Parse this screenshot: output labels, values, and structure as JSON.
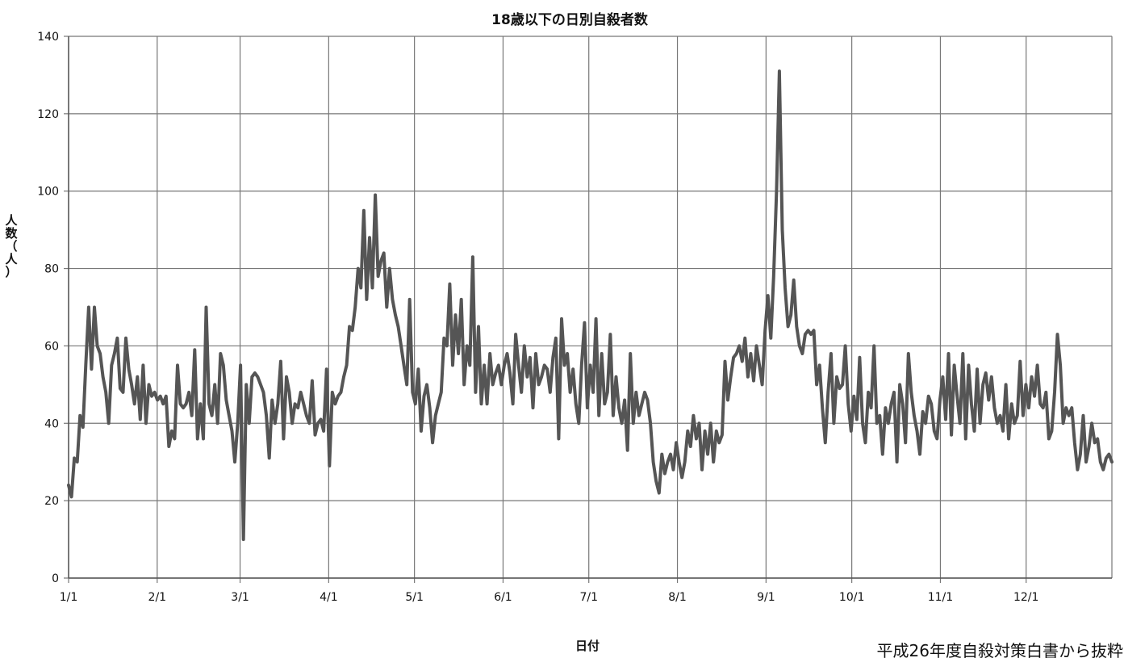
{
  "chart_data": {
    "type": "line",
    "title": "18歳以下の日別自殺者数",
    "xlabel": "日付",
    "ylabel": "人数（人）",
    "ylim": [
      0,
      140
    ],
    "yticks": [
      0,
      20,
      40,
      60,
      80,
      100,
      120,
      140
    ],
    "x_tick_labels": [
      "1/1",
      "2/1",
      "3/1",
      "4/1",
      "5/1",
      "6/1",
      "7/1",
      "8/1",
      "9/1",
      "10/1",
      "11/1",
      "12/1"
    ],
    "x_tick_days": [
      1,
      32,
      61,
      92,
      122,
      153,
      183,
      214,
      245,
      275,
      306,
      336
    ],
    "days_in_year": 366,
    "grid": true,
    "legend": "none",
    "line_color": "#555555",
    "series": [
      {
        "values": [
          24,
          21,
          31,
          30,
          42,
          39,
          55,
          70,
          54,
          70,
          60,
          58,
          52,
          48,
          40,
          55,
          58,
          62,
          49,
          48,
          62,
          54,
          50,
          45,
          52,
          41,
          55,
          40,
          50,
          47,
          48,
          46,
          47,
          45,
          47,
          34,
          38,
          36,
          55,
          45,
          44,
          45,
          48,
          42,
          59,
          36,
          45,
          36,
          70,
          45,
          42,
          50,
          40,
          58,
          55,
          46,
          42,
          38,
          30,
          40,
          55,
          10,
          50,
          40,
          52,
          53,
          52,
          50,
          48,
          42,
          31,
          46,
          40,
          45,
          56,
          36,
          52,
          48,
          40,
          45,
          44,
          48,
          45,
          42,
          40,
          51,
          37,
          40,
          41,
          38,
          54,
          29,
          48,
          45,
          47,
          48,
          52,
          55,
          65,
          64,
          70,
          80,
          75,
          95,
          72,
          88,
          75,
          99,
          78,
          82,
          84,
          70,
          80,
          72,
          68,
          65,
          60,
          55,
          50,
          72,
          48,
          45,
          54,
          38,
          47,
          50,
          44,
          35,
          42,
          45,
          48,
          62,
          60,
          76,
          55,
          68,
          58,
          72,
          50,
          60,
          55,
          83,
          48,
          65,
          45,
          55,
          45,
          58,
          50,
          53,
          55,
          50,
          55,
          58,
          53,
          45,
          63,
          55,
          48,
          60,
          52,
          57,
          44,
          58,
          50,
          52,
          55,
          54,
          48,
          57,
          62,
          36,
          67,
          55,
          58,
          48,
          54,
          45,
          40,
          55,
          66,
          44,
          55,
          48,
          67,
          42,
          58,
          45,
          48,
          63,
          42,
          52,
          44,
          40,
          46,
          33,
          58,
          40,
          48,
          42,
          45,
          48,
          46,
          40,
          30,
          25,
          22,
          32,
          27,
          30,
          32,
          28,
          35,
          30,
          26,
          30,
          38,
          34,
          42,
          36,
          40,
          28,
          38,
          32,
          40,
          30,
          38,
          35,
          37,
          56,
          46,
          52,
          57,
          58,
          60,
          56,
          62,
          52,
          58,
          51,
          60,
          55,
          50,
          64,
          73,
          62,
          78,
          100,
          131,
          90,
          75,
          65,
          68,
          77,
          65,
          60,
          58,
          63,
          64,
          63,
          64,
          50,
          55,
          44,
          35,
          48,
          58,
          40,
          52,
          49,
          50,
          60,
          45,
          38,
          47,
          41,
          57,
          40,
          35,
          48,
          44,
          60,
          40,
          42,
          32,
          44,
          40,
          45,
          48,
          30,
          50,
          45,
          35,
          58,
          48,
          42,
          38,
          32,
          43,
          40,
          47,
          45,
          38,
          36,
          46,
          52,
          41,
          58,
          37,
          55,
          47,
          40,
          58,
          36,
          55,
          45,
          38,
          54,
          40,
          50,
          53,
          46,
          52,
          44,
          40,
          42,
          38,
          50,
          36,
          45,
          40,
          42,
          56,
          42,
          50,
          44,
          52,
          47,
          55,
          45,
          44,
          48,
          36,
          38,
          48,
          63,
          55,
          40,
          44,
          42,
          44,
          35,
          28,
          32,
          42,
          30,
          34,
          40,
          35,
          36,
          30,
          28,
          31,
          32,
          30
        ]
      }
    ]
  },
  "source_note": "平成26年度自殺対策白書から抜粋"
}
